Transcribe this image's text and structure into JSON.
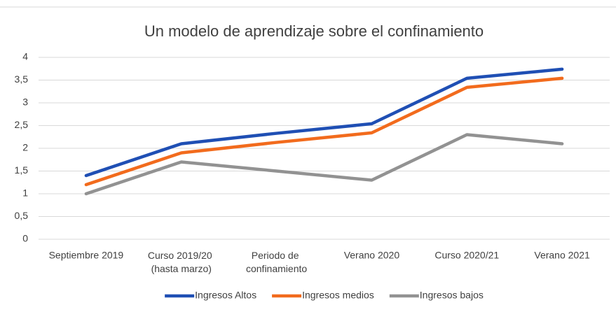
{
  "chart_data": {
    "type": "line",
    "title": "Un modelo de aprendizaje sobre el confinamiento",
    "categories": [
      "Septiembre 2019",
      "Curso 2019/20 (hasta marzo)",
      "Periodo de confinamiento",
      "Verano 2020",
      "Curso 2020/21",
      "Verano 2021"
    ],
    "series": [
      {
        "name": "Ingresos Altos",
        "color": "#1f4fb4",
        "values": [
          1.4,
          2.1,
          2.33,
          2.54,
          3.54,
          3.74
        ]
      },
      {
        "name": "Ingresos medios",
        "color": "#f26b1d",
        "values": [
          1.2,
          1.9,
          2.13,
          2.34,
          3.34,
          3.54
        ]
      },
      {
        "name": "Ingresos bajos",
        "color": "#929292",
        "values": [
          1.0,
          1.7,
          1.5,
          1.3,
          2.3,
          2.1
        ]
      }
    ],
    "ylim": [
      0,
      4
    ],
    "yticks": [
      0,
      {
        "value": 0.5,
        "label": "0,5"
      },
      1,
      {
        "value": 1.5,
        "label": "1,5"
      },
      2,
      {
        "value": 2.5,
        "label": "2,5"
      },
      3,
      {
        "value": 3.5,
        "label": "3,5"
      },
      4
    ],
    "grid": true,
    "legend": "bottom"
  }
}
